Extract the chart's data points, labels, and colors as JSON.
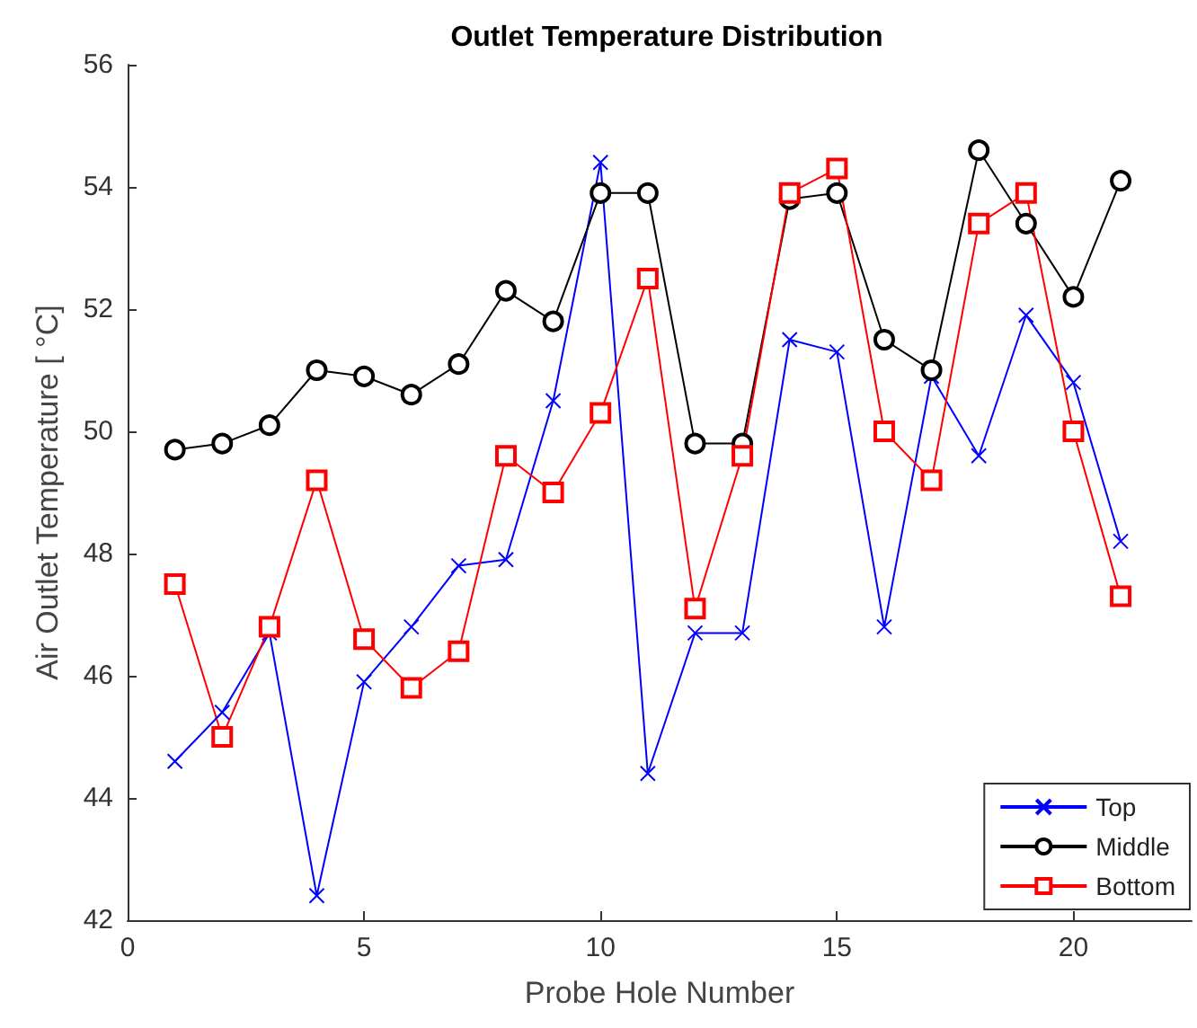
{
  "chart_data": {
    "type": "line",
    "title": "Outlet Temperature Distribution",
    "xlabel": "Probe Hole Number",
    "ylabel": "Air Outlet Temperature [ °C]",
    "x": [
      1,
      2,
      3,
      4,
      5,
      6,
      7,
      8,
      9,
      10,
      11,
      12,
      13,
      14,
      15,
      16,
      17,
      18,
      19,
      20,
      21
    ],
    "series": [
      {
        "name": "Top",
        "color": "#0000ff",
        "marker": "cross",
        "values": [
          44.6,
          45.4,
          46.7,
          42.4,
          45.9,
          46.8,
          47.8,
          47.9,
          50.5,
          54.4,
          44.4,
          46.7,
          46.7,
          51.5,
          51.3,
          46.8,
          50.9,
          49.6,
          51.9,
          50.8,
          48.2
        ]
      },
      {
        "name": "Middle",
        "color": "#000000",
        "marker": "circle",
        "values": [
          49.7,
          49.8,
          50.1,
          51.0,
          50.9,
          50.6,
          51.1,
          52.3,
          51.8,
          53.9,
          53.9,
          49.8,
          49.8,
          53.8,
          53.9,
          51.5,
          51.0,
          54.6,
          53.4,
          52.2,
          54.1
        ]
      },
      {
        "name": "Bottom",
        "color": "#ff0000",
        "marker": "square",
        "values": [
          47.5,
          45.0,
          46.8,
          49.2,
          46.6,
          45.8,
          46.4,
          49.6,
          49.0,
          50.3,
          52.5,
          47.1,
          49.6,
          53.9,
          54.3,
          50.0,
          49.2,
          53.4,
          53.9,
          50.0,
          47.3
        ]
      }
    ],
    "xlim": [
      0,
      22.5
    ],
    "xticks": [
      0,
      5,
      10,
      15,
      20
    ],
    "ylim": [
      42,
      56
    ],
    "yticks": [
      42,
      44,
      46,
      48,
      50,
      52,
      54,
      56
    ],
    "grid": false,
    "legend": "bottom right",
    "line_style": "solid"
  }
}
